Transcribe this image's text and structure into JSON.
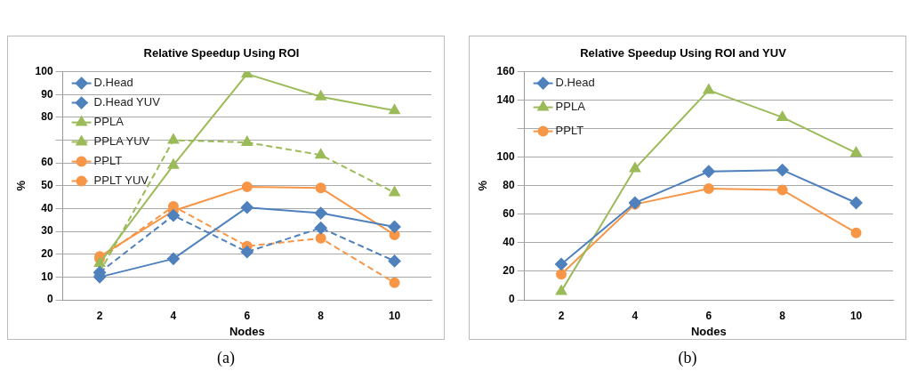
{
  "chart_data": [
    {
      "type": "line",
      "title": "Relative Speedup Using ROI",
      "xlabel": "Nodes",
      "ylabel": "%",
      "categories": [
        "2",
        "4",
        "6",
        "8",
        "10"
      ],
      "series": [
        {
          "name": "D.Head",
          "color": "#4f81bd",
          "marker": "diamond",
          "line_style": "solid",
          "values": [
            10,
            18,
            40.5,
            38,
            32
          ]
        },
        {
          "name": "D.Head YUV",
          "color": "#4f81bd",
          "marker": "diamond",
          "line_style": "dashed",
          "values": [
            12,
            37,
            21,
            31.5,
            17
          ]
        },
        {
          "name": "PPLA",
          "color": "#9bbb59",
          "marker": "triangle",
          "line_style": "solid",
          "values": [
            16,
            59,
            99,
            89,
            83
          ]
        },
        {
          "name": "PPLA YUV",
          "color": "#9bbb59",
          "marker": "triangle",
          "line_style": "dashed",
          "values": [
            12,
            70,
            69,
            63.5,
            47
          ]
        },
        {
          "name": "PPLT",
          "color": "#f79646",
          "marker": "circle",
          "line_style": "solid",
          "values": [
            19,
            39,
            49.5,
            49,
            28.5
          ]
        },
        {
          "name": "PPLT YUV",
          "color": "#f79646",
          "marker": "circle",
          "line_style": "dashed",
          "values": [
            18,
            41,
            23.5,
            27,
            7.5
          ]
        }
      ],
      "ylim": [
        0,
        100
      ],
      "yticks": [
        0,
        10,
        20,
        30,
        40,
        50,
        60,
        {
          "value": 70,
          "label": null
        },
        80,
        90,
        100
      ],
      "grid": "y",
      "legend": "top left",
      "annotations": [
        "(a)"
      ]
    },
    {
      "type": "line",
      "title": "Relative Speedup Using ROI and YUV",
      "xlabel": "Nodes",
      "ylabel": "%",
      "categories": [
        "2",
        "4",
        "6",
        "8",
        "10"
      ],
      "series": [
        {
          "name": "D.Head",
          "color": "#4f81bd",
          "marker": "diamond",
          "line_style": "solid",
          "values": [
            25,
            68,
            90,
            91,
            68
          ]
        },
        {
          "name": "PPLA",
          "color": "#9bbb59",
          "marker": "triangle",
          "line_style": "solid",
          "values": [
            6,
            92,
            147,
            128,
            103
          ]
        },
        {
          "name": "PPLT",
          "color": "#f79646",
          "marker": "circle",
          "line_style": "solid",
          "values": [
            18,
            67,
            78,
            77,
            47
          ]
        }
      ],
      "ylim": [
        0,
        160
      ],
      "yticks": [
        0,
        20,
        40,
        60,
        80,
        100,
        {
          "value": 120,
          "label": null
        },
        140,
        160
      ],
      "grid": "y",
      "legend": "top left",
      "annotations": [
        "(b)"
      ]
    }
  ]
}
